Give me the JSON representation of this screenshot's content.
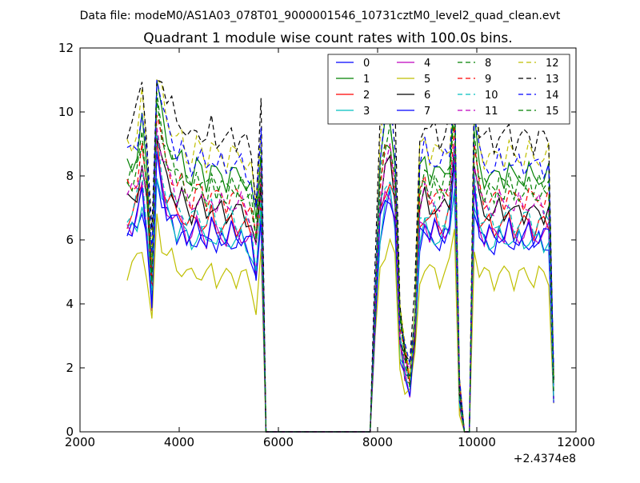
{
  "chart_data": {
    "type": "line",
    "suptitle": "Data file: modeM0/AS1A03_078T01_9000001546_10731cztM0_level2_quad_clean.evt",
    "title": "Quadrant 1 module wise count rates with 100.0s bins.",
    "xlabel": "",
    "ylabel": "",
    "xlim": [
      2000,
      12000
    ],
    "ylim": [
      0,
      12
    ],
    "x_ticks": [
      2000,
      4000,
      6000,
      8000,
      10000,
      12000
    ],
    "y_ticks": [
      0,
      2,
      4,
      6,
      8,
      10,
      12
    ],
    "x_offset_label": "+2.4374e8",
    "grid": false,
    "legend_position": "top-right",
    "x": [
      2950,
      3050,
      3150,
      3250,
      3350,
      3450,
      3550,
      3650,
      3750,
      3850,
      3950,
      4050,
      4150,
      4250,
      4350,
      4450,
      4550,
      4650,
      4750,
      4850,
      4950,
      5050,
      5150,
      5250,
      5350,
      5450,
      5550,
      5650,
      5750,
      5850,
      7850,
      7950,
      8050,
      8150,
      8250,
      8350,
      8450,
      8550,
      8650,
      8750,
      8850,
      8950,
      9050,
      9150,
      9250,
      9350,
      9450,
      9550,
      9650,
      9750,
      9850,
      9950,
      10050,
      10150,
      10250,
      10350,
      10450,
      10550,
      10650,
      10750,
      10850,
      10950,
      11050,
      11150,
      11250,
      11350,
      11450,
      11550
    ],
    "base_profile": [
      7.2,
      7.3,
      7.6,
      8.4,
      7.0,
      4.6,
      9.6,
      8.5,
      7.9,
      7.7,
      7.3,
      7.4,
      7.0,
      6.9,
      7.2,
      7.1,
      6.8,
      7.3,
      6.9,
      7.0,
      6.8,
      7.1,
      6.9,
      7.0,
      6.8,
      6.6,
      5.6,
      7.8,
      0.0,
      0.0,
      0.0,
      3.8,
      7.3,
      8.2,
      8.5,
      7.5,
      3.0,
      2.1,
      1.6,
      3.2,
      7.0,
      7.4,
      7.0,
      7.2,
      6.9,
      7.1,
      7.3,
      9.2,
      1.2,
      0.0,
      0.0,
      8.4,
      7.2,
      6.9,
      7.0,
      6.8,
      7.1,
      6.9,
      7.2,
      6.8,
      7.0,
      6.9,
      7.1,
      6.8,
      7.0,
      6.9,
      7.0,
      1.4
    ],
    "series": [
      {
        "name": "0",
        "color": "#0000ff",
        "dash": "solid",
        "scale": 0.85
      },
      {
        "name": "1",
        "color": "#008000",
        "dash": "solid",
        "scale": 1.15
      },
      {
        "name": "2",
        "color": "#ff0000",
        "dash": "solid",
        "scale": 0.93
      },
      {
        "name": "3",
        "color": "#00bfbf",
        "dash": "solid",
        "scale": 0.86
      },
      {
        "name": "4",
        "color": "#bf00bf",
        "dash": "solid",
        "scale": 0.89
      },
      {
        "name": "5",
        "color": "#bfbf00",
        "dash": "solid",
        "scale": 0.7
      },
      {
        "name": "6",
        "color": "#000000",
        "dash": "solid",
        "scale": 0.99
      },
      {
        "name": "7",
        "color": "#0000ff",
        "dash": "solid",
        "scale": 0.88
      },
      {
        "name": "8",
        "color": "#008000",
        "dash": "dashed",
        "scale": 1.1
      },
      {
        "name": "9",
        "color": "#ff0000",
        "dash": "dashed",
        "scale": 1.05
      },
      {
        "name": "10",
        "color": "#00bfbf",
        "dash": "dashed",
        "scale": 0.95
      },
      {
        "name": "11",
        "color": "#bf00bf",
        "dash": "dashed",
        "scale": 1.02
      },
      {
        "name": "12",
        "color": "#bfbf00",
        "dash": "dashed",
        "scale": 1.24
      },
      {
        "name": "13",
        "color": "#000000",
        "dash": "dashed",
        "scale": 1.32
      },
      {
        "name": "14",
        "color": "#0000ff",
        "dash": "dashed",
        "scale": 1.2
      },
      {
        "name": "15",
        "color": "#008000",
        "dash": "dashed",
        "scale": 1.08
      }
    ]
  }
}
